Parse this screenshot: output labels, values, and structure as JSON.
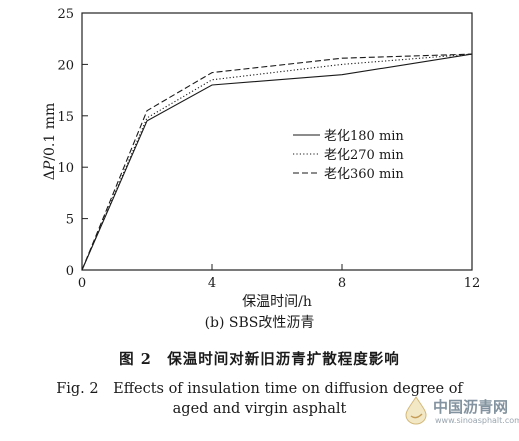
{
  "chart_data": {
    "type": "line",
    "title": "",
    "xlabel": "保温时间/h",
    "ylabel_prefix": "Δ",
    "ylabel_var": "P",
    "ylabel_suffix": "/0.1 mm",
    "xlim": [
      0,
      12
    ],
    "ylim": [
      0,
      25
    ],
    "xticks": [
      0,
      4,
      8,
      12
    ],
    "yticks": [
      0,
      5,
      10,
      15,
      20,
      25
    ],
    "xtick_labels": [
      "0",
      "4",
      "8",
      "12"
    ],
    "ytick_labels": [
      "0",
      "5",
      "10",
      "15",
      "20",
      "25"
    ],
    "grid": false,
    "legend_position": "center-right",
    "x": [
      0,
      2,
      4,
      8,
      12
    ],
    "series": [
      {
        "name": "老化180 min",
        "style": "solid",
        "values": [
          0,
          14.5,
          18.0,
          19.0,
          21.0
        ]
      },
      {
        "name": "老化270 min",
        "style": "dotted",
        "values": [
          0,
          14.8,
          18.5,
          20.0,
          21.0
        ]
      },
      {
        "name": "老化360 min",
        "style": "dashed",
        "values": [
          0,
          15.5,
          19.2,
          20.6,
          21.0
        ]
      }
    ]
  },
  "captions": {
    "sub": "(b) SBS改性沥青",
    "cn": "图 2　保温时间对新旧沥青扩散程度影响",
    "en_line1": "Fig. 2　Effects of insulation time on diffusion degree of",
    "en_line2": "aged and virgin asphalt"
  },
  "watermark": {
    "text": "中国沥青网",
    "url": "www.sinoasphalt.com",
    "logo": "water-drop-logo-icon"
  }
}
